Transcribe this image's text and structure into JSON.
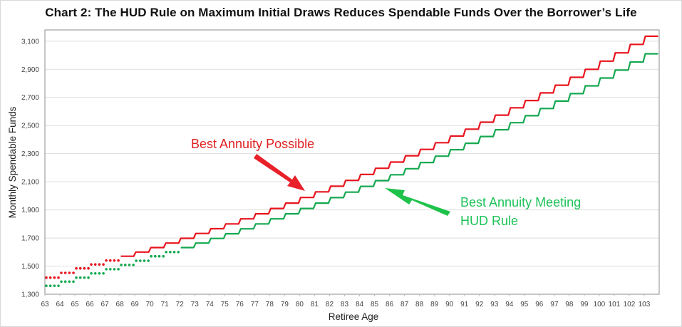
{
  "title": "Chart 2: The HUD Rule on Maximum Initial Draws Reduces Spendable Funds Over the Borrower’s Life",
  "chart_data": {
    "type": "line",
    "title": "Chart 2: The HUD Rule on Maximum Initial Draws Reduces Spendable Funds Over the Borrower’s Life",
    "xlabel": "Retiree Age",
    "ylabel": "Monthly Spendable Funds",
    "ylim": [
      1300,
      3180
    ],
    "yticks": [
      1300,
      1500,
      1700,
      1900,
      2100,
      2300,
      2500,
      2700,
      2900,
      3100
    ],
    "ytick_labels": [
      "1,300",
      "1,500",
      "1,700",
      "1,900",
      "2,100",
      "2,300",
      "2,500",
      "2,700",
      "2,900",
      "3,100"
    ],
    "xlim": [
      63,
      104
    ],
    "xtick_labels": [
      "63",
      "64",
      "65",
      "66",
      "67",
      "68",
      "69",
      "70",
      "71",
      "72",
      "73",
      "74",
      "75",
      "76",
      "77",
      "78",
      "79",
      "80",
      "81",
      "82",
      "83",
      "84",
      "85",
      "86",
      "87",
      "88",
      "89",
      "90",
      "91",
      "92",
      "93",
      "94",
      "95",
      "96",
      "97",
      "98",
      "99",
      "100",
      "101",
      "102",
      "103"
    ],
    "grid": "horizontal",
    "legend": "none (inline annotations)",
    "step_style": "annual step; dotted segments for ages 63-67 (red) and 63-71 (green), solid thereafter",
    "x": [
      63,
      64,
      65,
      66,
      67,
      68,
      69,
      70,
      71,
      72,
      73,
      74,
      75,
      76,
      77,
      78,
      79,
      80,
      81,
      82,
      83,
      84,
      85,
      86,
      87,
      88,
      89,
      90,
      91,
      92,
      93,
      94,
      95,
      96,
      97,
      98,
      99,
      100,
      101,
      102,
      103
    ],
    "series": [
      {
        "name": "Best Annuity Possible",
        "color": "#e8141e",
        "dotted_until_age": 68,
        "values": [
          1418,
          1452,
          1484,
          1512,
          1540,
          1570,
          1600,
          1632,
          1664,
          1698,
          1732,
          1766,
          1800,
          1836,
          1872,
          1910,
          1948,
          1988,
          2028,
          2068,
          2110,
          2152,
          2196,
          2240,
          2285,
          2330,
          2378,
          2425,
          2474,
          2524,
          2574,
          2626,
          2678,
          2732,
          2787,
          2843,
          2900,
          2958,
          3017,
          3077,
          3135
        ]
      },
      {
        "name": "Best Annuity Meeting HUD Rule",
        "color": "#14a850",
        "dotted_until_age": 72,
        "values": [
          1360,
          1390,
          1418,
          1448,
          1478,
          1508,
          1538,
          1570,
          1600,
          1632,
          1664,
          1697,
          1730,
          1765,
          1800,
          1836,
          1872,
          1910,
          1948,
          1987,
          2026,
          2067,
          2108,
          2150,
          2193,
          2237,
          2282,
          2328,
          2374,
          2422,
          2470,
          2520,
          2570,
          2621,
          2674,
          2727,
          2782,
          2838,
          2894,
          2952,
          3010
        ]
      }
    ],
    "annotations": [
      {
        "text": "Best Annuity Possible",
        "color": "#e02020",
        "arrow_to": "red line near age 80"
      },
      {
        "text": "Best Annuity Meeting HUD Rule",
        "color": "#1ec25a",
        "arrow_to": "green line near age 86"
      }
    ]
  },
  "annotations": {
    "red_label": "Best Annuity Possible",
    "green_label_line1": "Best Annuity Meeting",
    "green_label_line2": "HUD Rule"
  },
  "axes": {
    "xlabel": "Retiree Age",
    "ylabel": "Monthly Spendable Funds"
  }
}
